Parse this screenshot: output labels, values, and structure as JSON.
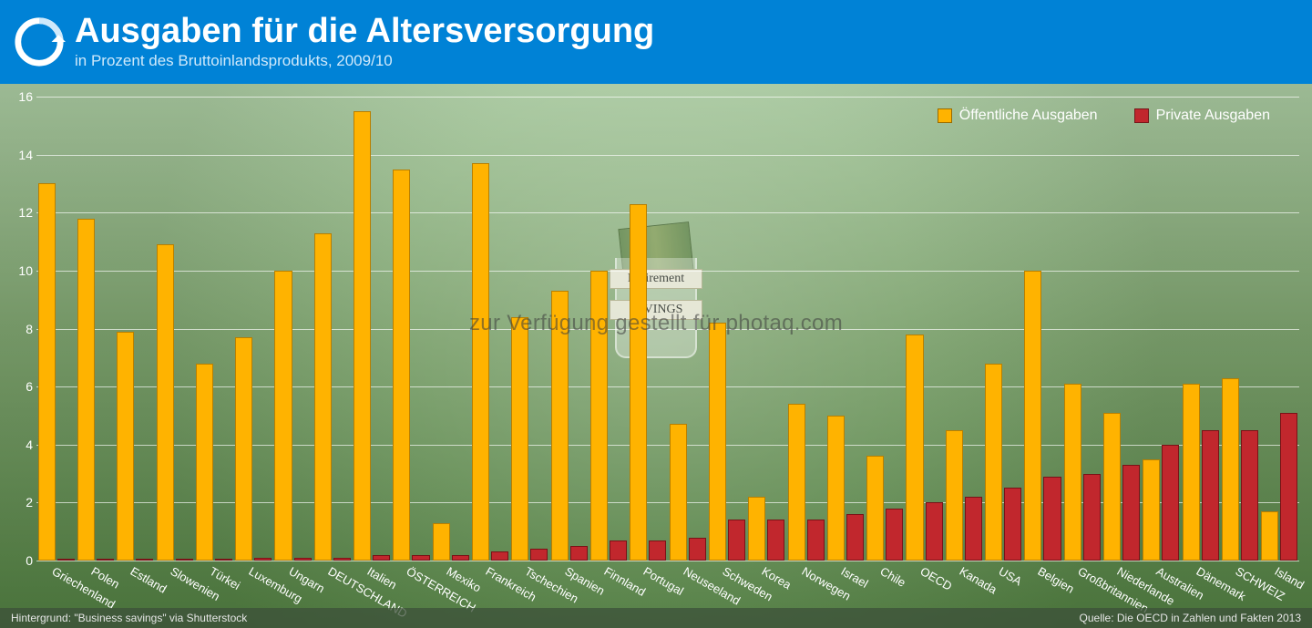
{
  "header": {
    "title": "Ausgaben für die Altersversorgung",
    "subtitle": "in Prozent des Bruttoinlandsprodukts, 2009/10",
    "brand_color": "#0082d6",
    "title_color": "#ffffff",
    "subtitle_color": "#cfe9fb",
    "title_fontsize": 38,
    "subtitle_fontsize": 17
  },
  "legend": {
    "items": [
      {
        "label": "Öffentliche Ausgaben",
        "color": "#ffb300"
      },
      {
        "label": "Private Ausgaben",
        "color": "#c1272d"
      }
    ],
    "text_color": "#ffffff",
    "fontsize": 16
  },
  "watermark": "zur Verfügung gestellt für photaq.com",
  "glass_labels": {
    "top": "Retirement",
    "bottom": "SAVINGS"
  },
  "footer": {
    "left": "Hintergrund: \"Business savings\" via Shutterstock",
    "right": "Quelle:  Die OECD in Zahlen und Fakten 2013",
    "text_color": "#e6e6e6",
    "fontsize": 12
  },
  "chart": {
    "type": "bar",
    "ylabel": "",
    "ylim": [
      0,
      16
    ],
    "ytick_step": 2,
    "grid_color": "rgba(255,255,255,0.65)",
    "axis_text_color": "#ffffff",
    "axis_fontsize": 14,
    "xlabel_fontsize": 13,
    "xlabel_rotation_deg": 30,
    "bar_colors": {
      "public": "#ffb300",
      "private": "#c1272d"
    },
    "bar_border_colors": {
      "public": "#b97f00",
      "private": "#7a1216"
    },
    "background_gradient": [
      "#a9c9a0",
      "#7ea36f",
      "#4f7c3f"
    ],
    "categories": [
      "Griechenland",
      "Polen",
      "Estland",
      "Slowenien",
      "Türkei",
      "Luxemburg",
      "Ungarn",
      "DEUTSCHLAND",
      "Italien",
      "ÖSTERREICH",
      "Mexiko",
      "Frankreich",
      "Tschechien",
      "Spanien",
      "Finnland",
      "Portugal",
      "Neuseeland",
      "Schweden",
      "Korea",
      "Norwegen",
      "Israel",
      "Chile",
      "OECD",
      "Kanada",
      "USA",
      "Belgien",
      "Großbritannien",
      "Niederlande",
      "Australien",
      "Dänemark",
      "SCHWEIZ",
      "Island"
    ],
    "series": {
      "public": [
        13.0,
        11.8,
        7.9,
        10.9,
        6.8,
        7.7,
        10.0,
        11.3,
        15.5,
        13.5,
        1.3,
        13.7,
        8.4,
        9.3,
        10.0,
        12.3,
        4.7,
        8.2,
        2.2,
        5.4,
        5.0,
        3.6,
        7.8,
        4.5,
        6.8,
        10.0,
        6.1,
        5.1,
        3.5,
        6.1,
        6.3,
        1.7
      ],
      "private": [
        0.0,
        0.0,
        0.0,
        0.0,
        0.0,
        0.1,
        0.1,
        0.1,
        0.2,
        0.2,
        0.2,
        0.3,
        0.4,
        0.5,
        0.7,
        0.7,
        0.8,
        1.4,
        1.4,
        1.4,
        1.6,
        1.8,
        2.0,
        2.2,
        2.5,
        2.9,
        3.0,
        3.3,
        4.0,
        4.5,
        4.5,
        5.1
      ]
    }
  }
}
